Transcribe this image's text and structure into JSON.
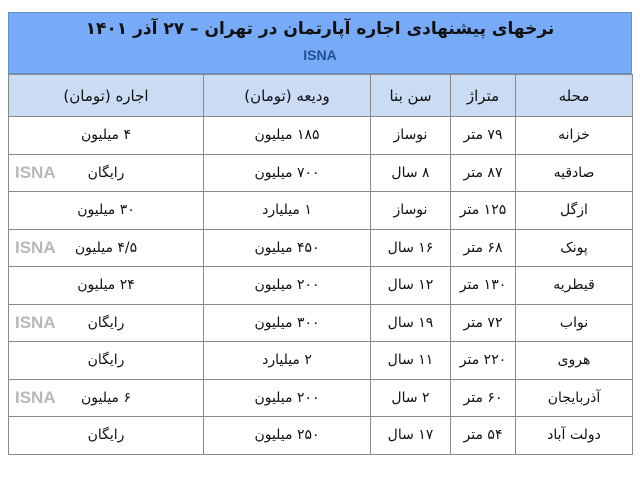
{
  "title": "نرخهای پیشنهادی اجاره آپارتمان در تهران –  ۲۷ آذر ۱۴۰۱",
  "brand": "ISNA",
  "watermark": "ISNA",
  "columns": [
    "محله",
    "متراژ",
    "سن بنا",
    "ودیعه (تومان)",
    "اجاره (تومان)"
  ],
  "rows": [
    [
      "خزانه",
      "۷۹ متر",
      "نوساز",
      "۱۸۵ میلیون",
      "۴ میلیون"
    ],
    [
      "صادقیه",
      "۸۷ متر",
      "۸ سال",
      "۷۰۰ میلیون",
      "رایگان"
    ],
    [
      "ازگل",
      "۱۲۵ متر",
      "نوساز",
      "۱ میلیارد",
      "۳۰ میلیون"
    ],
    [
      "پونک",
      "۶۸ متر",
      "۱۶ سال",
      "۴۵۰ میلیون",
      "۴/۵ میلیون"
    ],
    [
      "قیطریه",
      "۱۳۰ متر",
      "۱۲ سال",
      "۲۰۰ میلیون",
      "۲۴ میلیون"
    ],
    [
      "نواب",
      "۷۲ متر",
      "۱۹ سال",
      "۳۰۰ میلیون",
      "رایگان"
    ],
    [
      "هروی",
      "۲۲۰ متر",
      "۱۱ سال",
      "۲ میلیارد",
      "رایگان"
    ],
    [
      "آذربایجان",
      "۶۰ متر",
      "۲ سال",
      "۲۰۰ میلیون",
      "۶ میلیون"
    ],
    [
      "دولت آباد",
      "۵۴ متر",
      "۱۷ سال",
      "۲۵۰ میلیون",
      "رایگان"
    ]
  ],
  "colors": {
    "title_band": "#78abf7",
    "header": "#c9dcf3",
    "brand": "#1f4e9a"
  }
}
